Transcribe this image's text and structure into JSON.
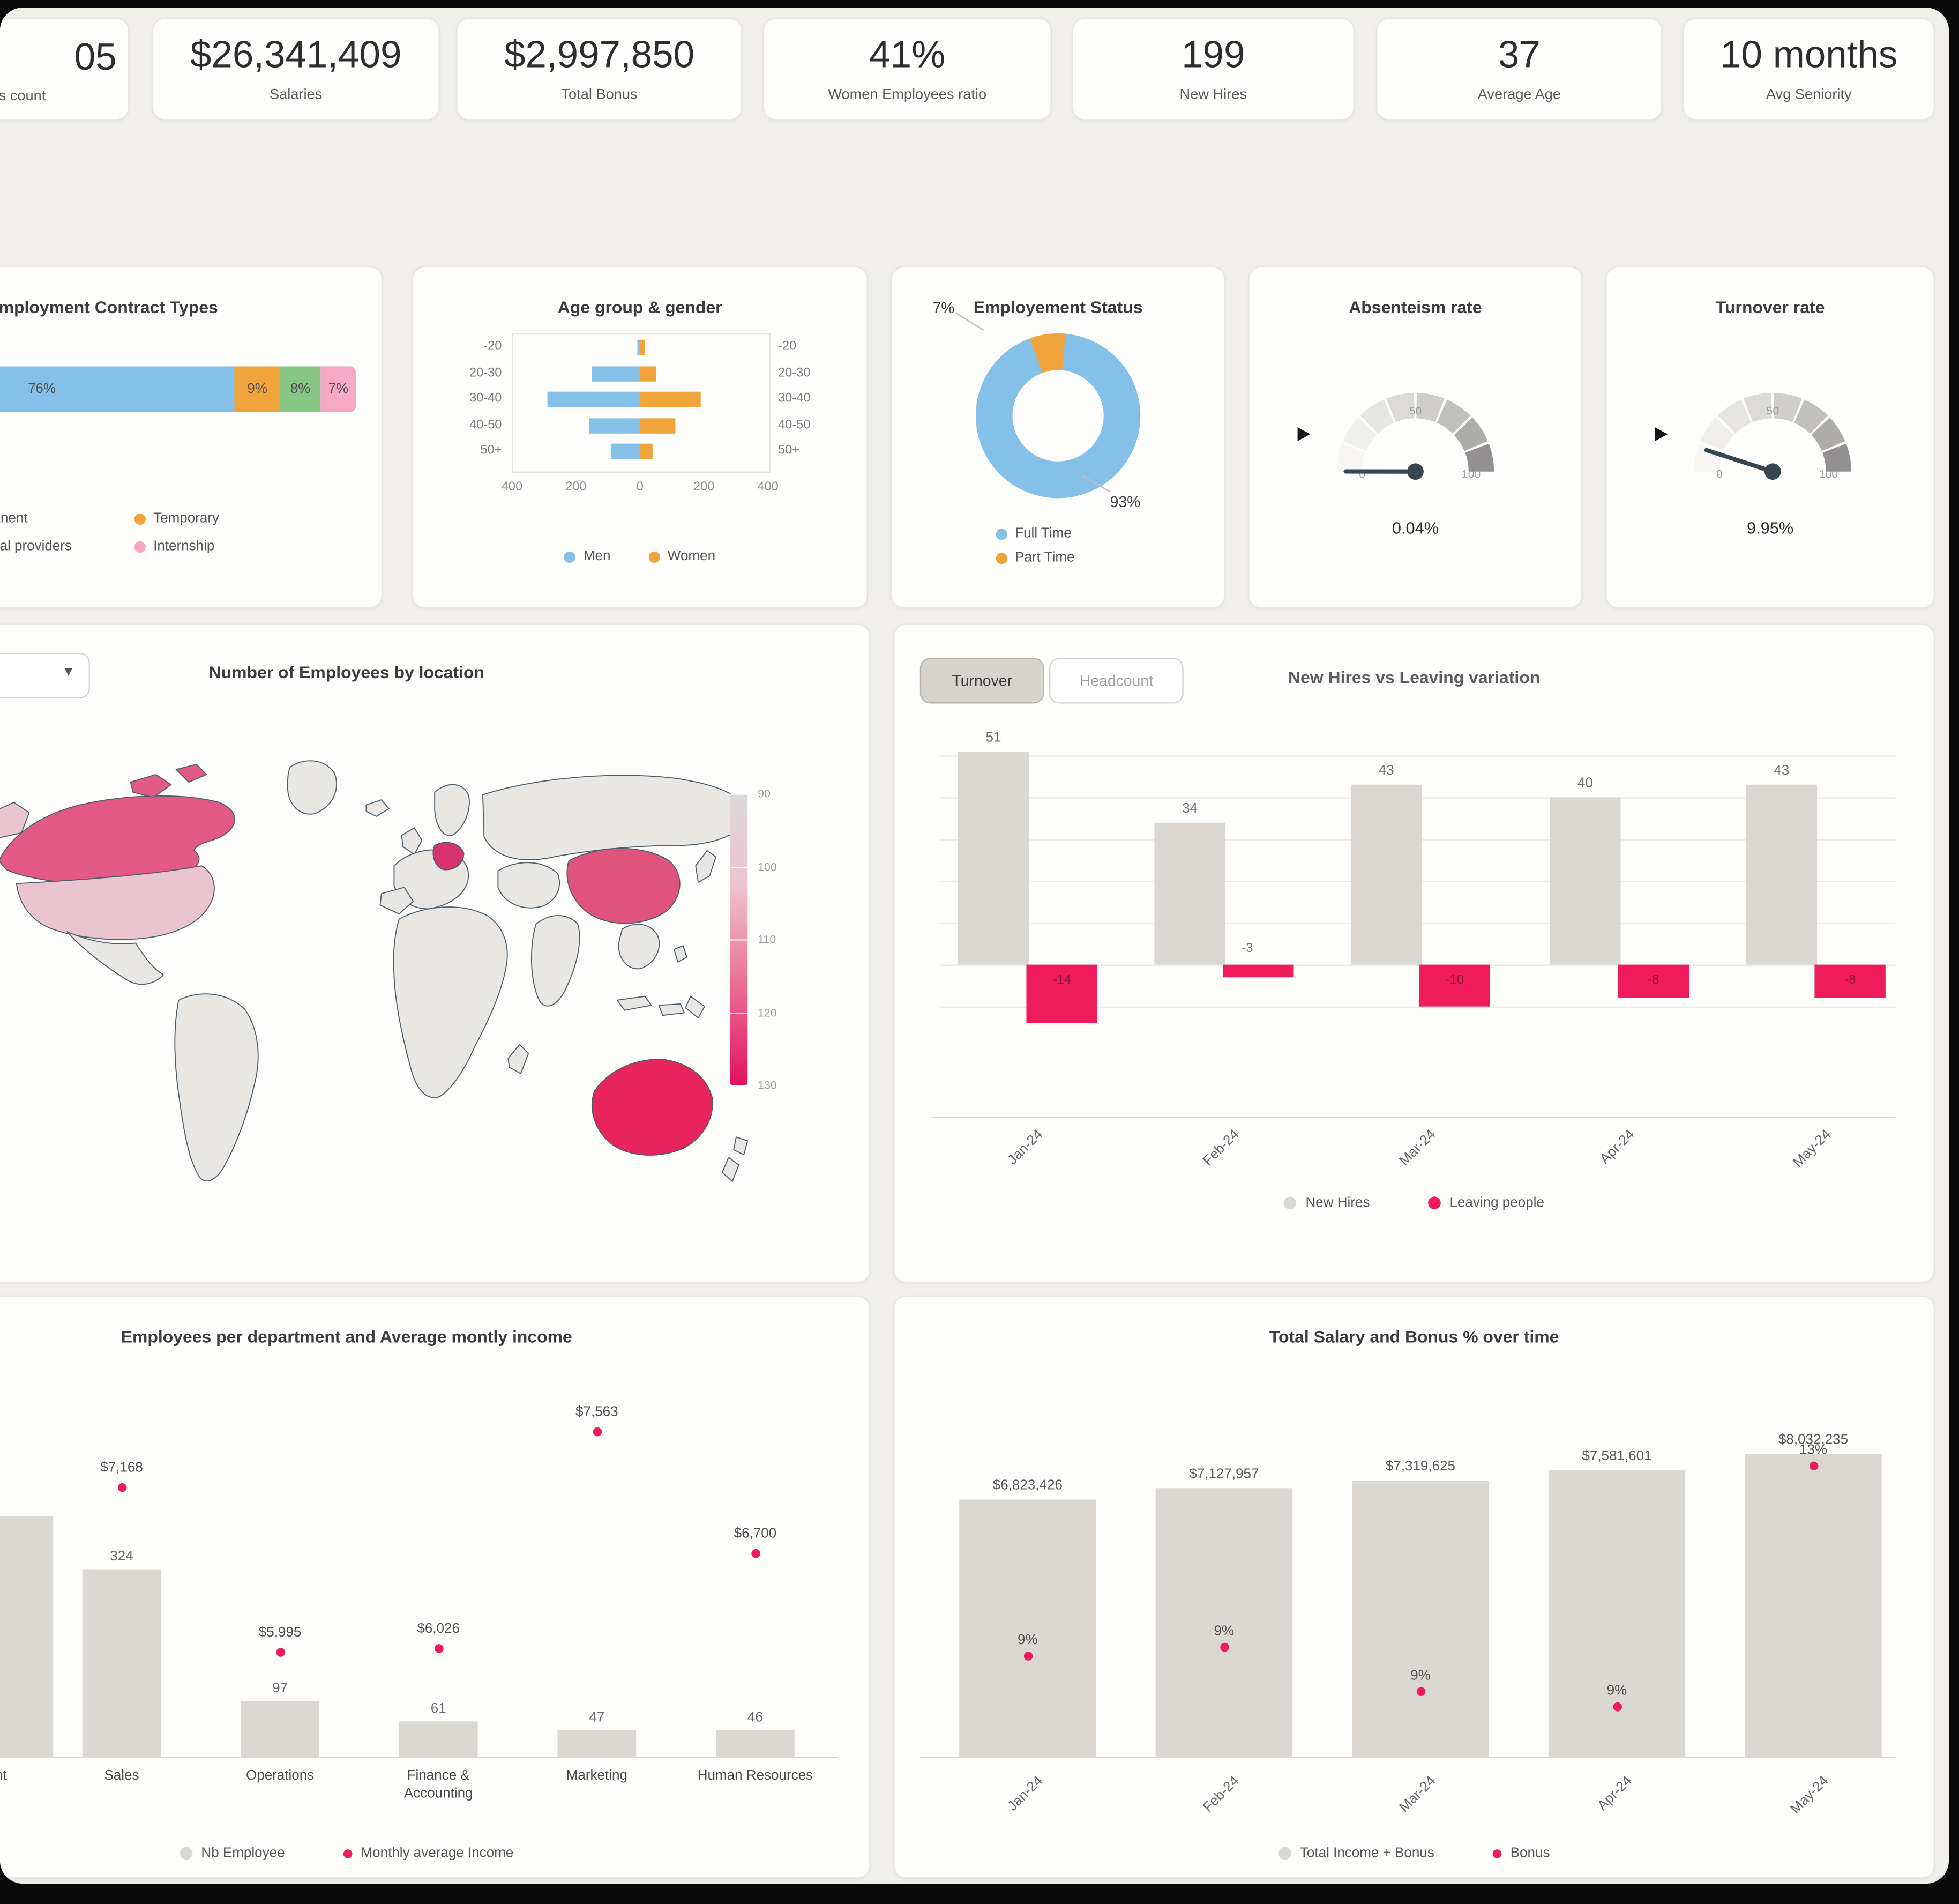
{
  "page": {
    "bg": "#f1efeb",
    "frame": "#0a0a0a",
    "card_bg": "#fdfdfc",
    "card_border": "#e8e5e1"
  },
  "palette": {
    "pink": "#ee1c5b",
    "light_pink_bar": "#f6a8c5",
    "gray_bar": "#dbd8d4",
    "blue": "#84c0e8",
    "orange": "#f2a43c",
    "green": "#86c883",
    "needle": "#36474f",
    "text_dark": "#2d2d2d",
    "text_mid": "#5c5c5c",
    "map": {
      "high": "#e25a85",
      "low": "#eac4cf",
      "patch": "#d8336e",
      "medium": "#e0537f",
      "very_high": "#e8245e",
      "land": "#e9e7e3",
      "border": "#4e5f69"
    }
  },
  "kpis": [
    {
      "id": "employees-count",
      "value": "05",
      "label": "s count",
      "cut": true
    },
    {
      "id": "salaries",
      "value": "$26,341,409",
      "label": "Salaries"
    },
    {
      "id": "total-bonus",
      "value": "$2,997,850",
      "label": "Total Bonus"
    },
    {
      "id": "women-ratio",
      "value": "41%",
      "label": "Women Employees ratio"
    },
    {
      "id": "new-hires",
      "value": "199",
      "label": "New Hires"
    },
    {
      "id": "average-age",
      "value": "37",
      "label": "Average Age"
    },
    {
      "id": "avg-seniority",
      "value": "10 months",
      "label": "Avg Seniority"
    }
  ],
  "map_dropdown": {
    "caret": "▼"
  },
  "chart_data": [
    {
      "id": "contract-types",
      "type": "bar",
      "subtype": "stacked-horizontal",
      "title": "Employment Contract Types",
      "segments": [
        {
          "label": "Permanent",
          "value": 76,
          "text": "76%",
          "color": "#84c0e8"
        },
        {
          "label": "Temporary",
          "value": 9,
          "text": "9%",
          "color": "#f2a43c"
        },
        {
          "label": "External providers",
          "value": 8,
          "text": "8%",
          "color": "#86c883"
        },
        {
          "label": "Internship",
          "value": 7,
          "text": "7%",
          "color": "#f6a8c5"
        }
      ]
    },
    {
      "id": "age-gender",
      "type": "bar",
      "subtype": "butterfly",
      "title": "Age group & gender",
      "categories": [
        "-20",
        "20-30",
        "30-40",
        "40-50",
        "50+"
      ],
      "series": [
        {
          "name": "Men",
          "color": "#84c0e8",
          "values": [
            8,
            150,
            290,
            160,
            90
          ]
        },
        {
          "name": "Women",
          "color": "#f2a43c",
          "values": [
            15,
            50,
            190,
            110,
            40
          ]
        }
      ],
      "xticks": [
        "400",
        "200",
        "0",
        "200",
        "400"
      ],
      "xlim": [
        -400,
        400
      ]
    },
    {
      "id": "employment-status",
      "type": "pie",
      "title": "Employement Status",
      "slices": [
        {
          "label": "Full Time",
          "value": 93,
          "text": "93%",
          "color": "#84c0e8"
        },
        {
          "label": "Part Time",
          "value": 7,
          "text": "7%",
          "color": "#f2a43c"
        }
      ]
    },
    {
      "id": "absenteeism-rate",
      "type": "gauge",
      "title": "Absenteism rate",
      "value": 0.04,
      "value_label": "0.04%",
      "min": 0,
      "max": 100,
      "ticks": [
        "0",
        "50",
        "100"
      ]
    },
    {
      "id": "turnover-rate",
      "type": "gauge",
      "title": "Turnover rate",
      "value": 9.95,
      "value_label": "9.95%",
      "min": 0,
      "max": 100,
      "ticks": [
        "0",
        "50",
        "100"
      ]
    },
    {
      "id": "employees-map",
      "type": "heatmap",
      "title": "Number of Employees by location",
      "legend_ticks": [
        "90",
        "100",
        "110",
        "120",
        "130"
      ],
      "countries": [
        {
          "name": "Canada",
          "level": "high"
        },
        {
          "name": "United States",
          "level": "low"
        },
        {
          "name": "Central Europe",
          "level": "high"
        },
        {
          "name": "China",
          "level": "medium"
        },
        {
          "name": "Australia",
          "level": "very-high"
        }
      ]
    },
    {
      "id": "hires-vs-leaving",
      "type": "bar",
      "title": "New Hires vs Leaving variation",
      "toggle": {
        "options": [
          "Turnover",
          "Headcount"
        ],
        "active": "Turnover"
      },
      "categories": [
        "Jan-24",
        "Feb-24",
        "Mar-24",
        "Apr-24",
        "May-24"
      ],
      "series": [
        {
          "name": "New Hires",
          "color": "#dbd8d4",
          "values": [
            51,
            34,
            43,
            40,
            43
          ]
        },
        {
          "name": "Leaving people",
          "color": "#ee1c5b",
          "values": [
            -14,
            -3,
            -10,
            -8,
            -8
          ]
        }
      ]
    },
    {
      "id": "dept-income",
      "type": "bar",
      "title": "Employees per department and Average montly income",
      "categories": [
        "Development",
        "Sales",
        "Operations",
        "Finance & Accounting",
        "Marketing",
        "Human Resources"
      ],
      "series": [
        {
          "name": "Nb Employee",
          "color": "#dbd8d4",
          "values": [
            415,
            324,
            97,
            61,
            47,
            46
          ],
          "labels": [
            "",
            "324",
            "97",
            "61",
            "47",
            "46"
          ]
        },
        {
          "name": "Monthly average Income",
          "color": "#ee1c5b",
          "values": [
            null,
            7168,
            5995,
            6026,
            7563,
            6700
          ],
          "labels": [
            "",
            "$7,168",
            "$5,995",
            "$6,026",
            "$7,563",
            "$6,700"
          ]
        }
      ]
    },
    {
      "id": "salary-bonus",
      "type": "bar",
      "title": "Total Salary and Bonus % over time",
      "categories": [
        "Jan-24",
        "Feb-24",
        "Mar-24",
        "Apr-24",
        "May-24"
      ],
      "series": [
        {
          "name": "Total Income + Bonus",
          "color": "#dbd8d4",
          "values": [
            6823426,
            7127957,
            7319625,
            7581601,
            8032235
          ],
          "labels": [
            "$6,823,426",
            "$7,127,957",
            "$7,319,625",
            "$7,581,601",
            "$8,032,235"
          ]
        },
        {
          "name": "Bonus",
          "color": "#ee1c5b",
          "values": [
            9,
            9,
            9,
            9,
            13
          ],
          "labels": [
            "9%",
            "9%",
            "9%",
            "9%",
            "13%"
          ]
        }
      ]
    }
  ]
}
